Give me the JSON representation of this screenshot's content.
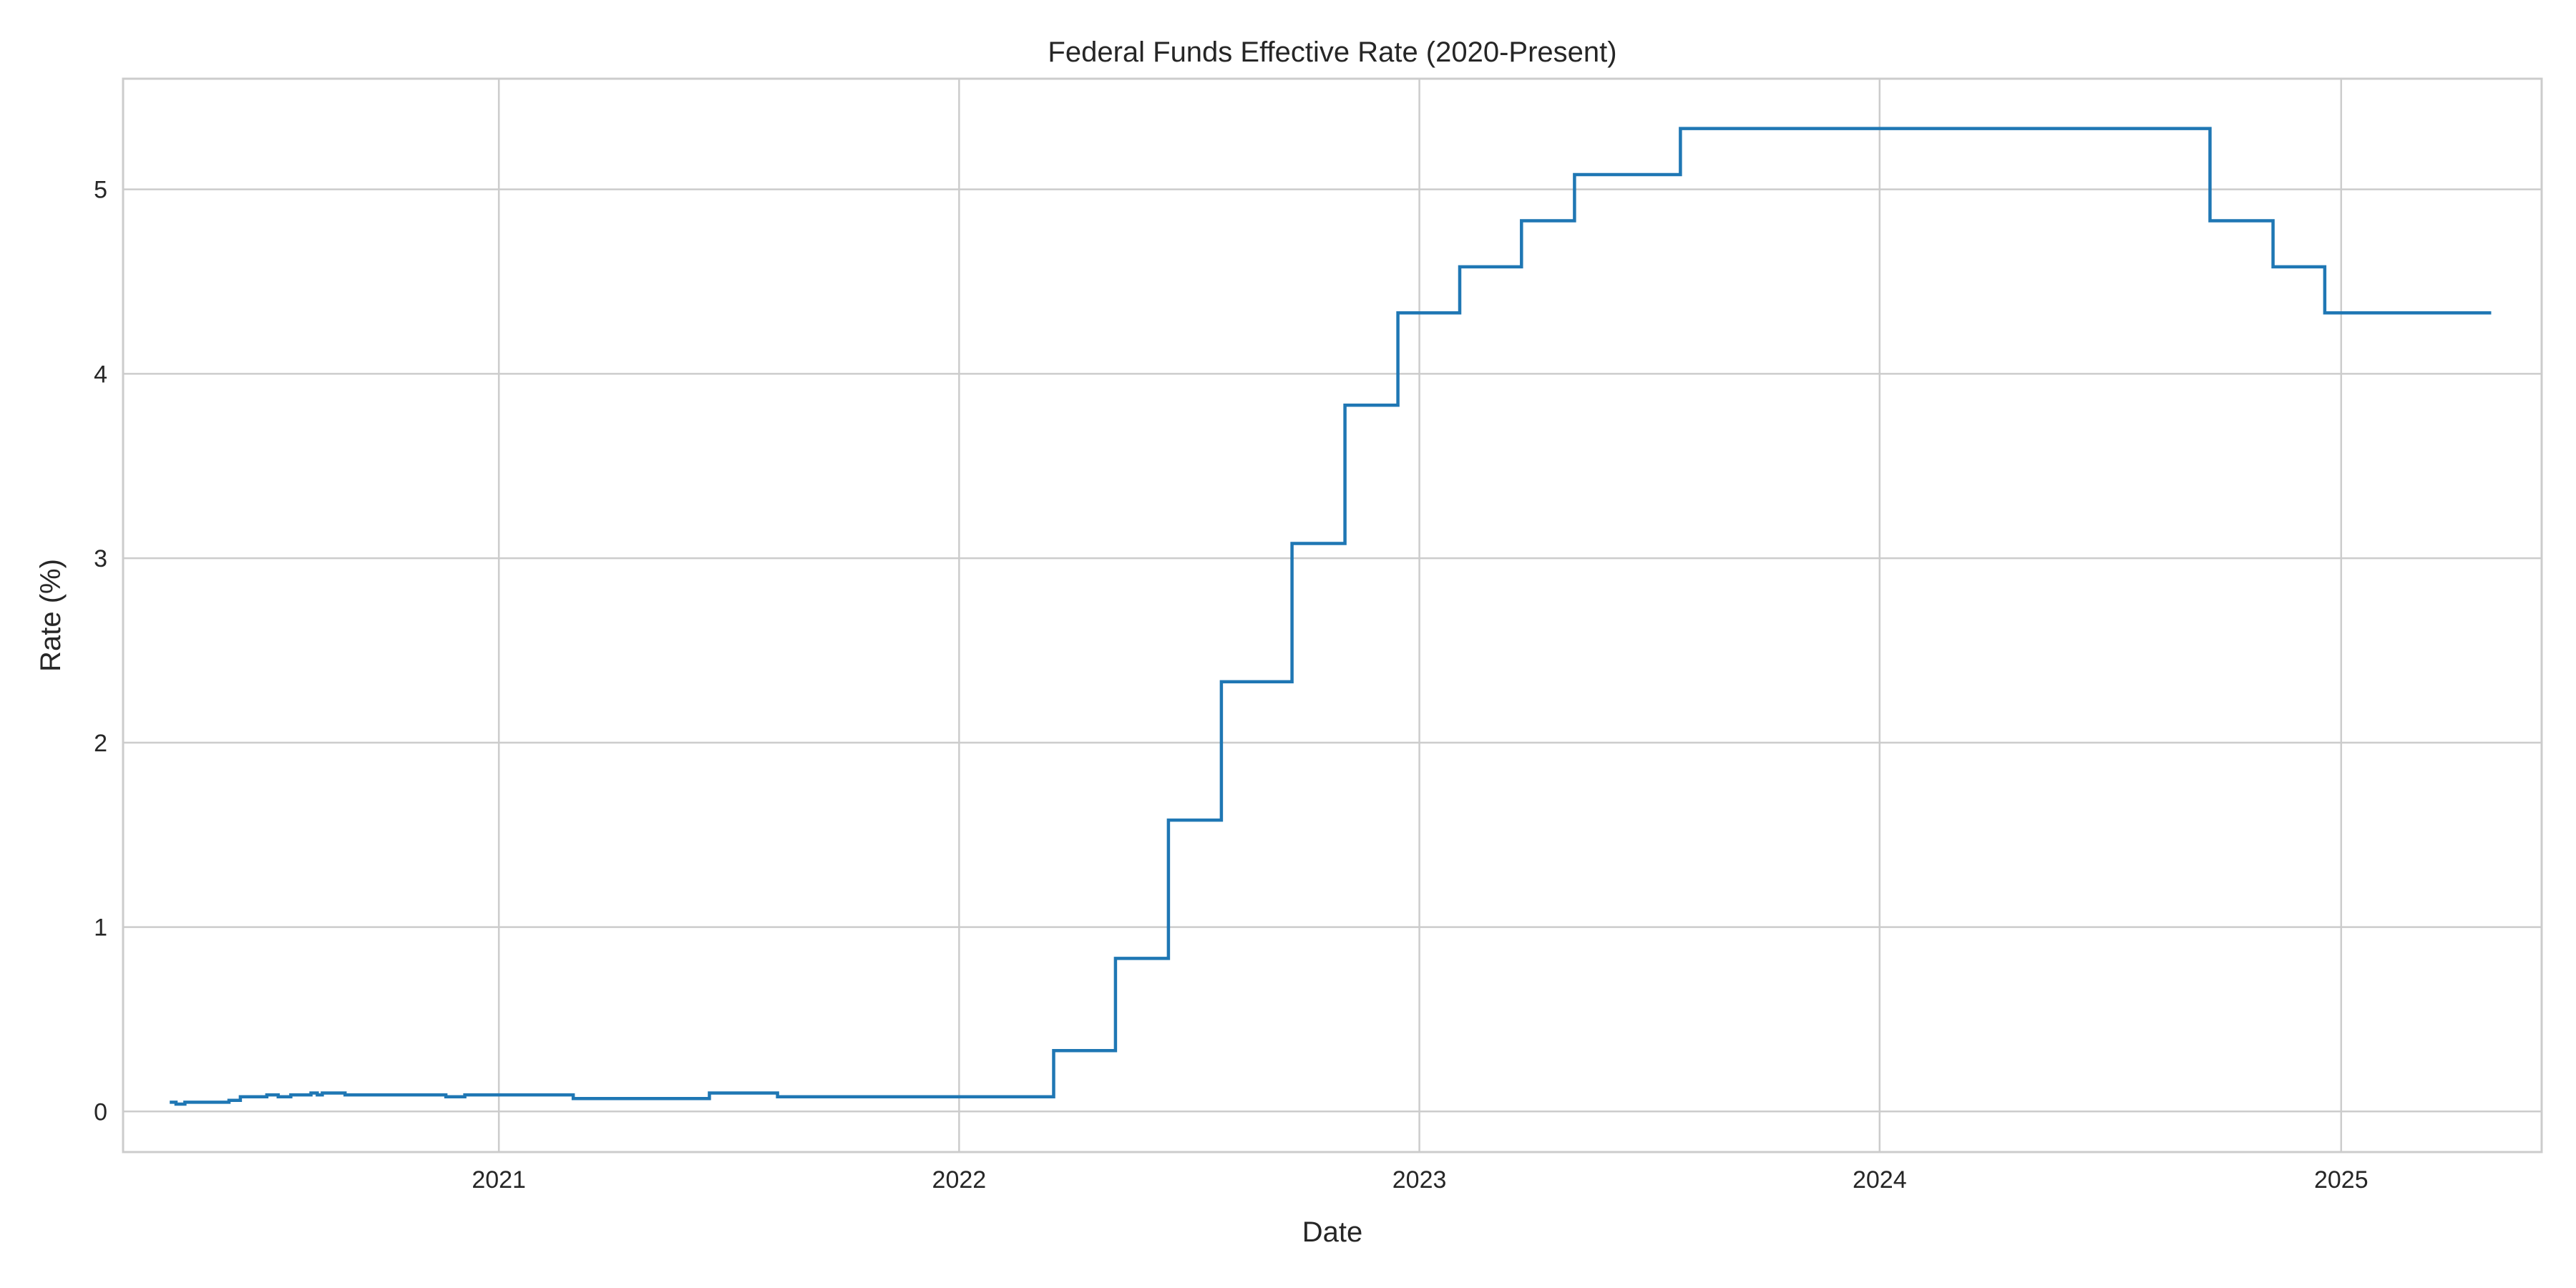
{
  "chart_data": {
    "type": "line",
    "title": "Federal Funds Effective Rate (2020-Present)",
    "xlabel": "Date",
    "ylabel": "Rate (%)",
    "grid": true,
    "legend": "none",
    "xlim": [
      "2020-03-09",
      "2025-06-09"
    ],
    "ylim": [
      -0.22,
      5.6
    ],
    "x_ticks": [
      {
        "date": "2021-01-01",
        "label": "2021"
      },
      {
        "date": "2022-01-01",
        "label": "2022"
      },
      {
        "date": "2023-01-01",
        "label": "2023"
      },
      {
        "date": "2024-01-01",
        "label": "2024"
      },
      {
        "date": "2025-01-01",
        "label": "2025"
      }
    ],
    "y_ticks": [
      0,
      1,
      2,
      3,
      4,
      5
    ],
    "colors": {
      "series": "#1f77b4",
      "grid": "#cccccc",
      "text": "#262626"
    },
    "series": [
      {
        "step": "post",
        "points": [
          [
            "2020-04-15",
            0.05
          ],
          [
            "2020-04-20",
            0.04
          ],
          [
            "2020-04-27",
            0.05
          ],
          [
            "2020-06-01",
            0.06
          ],
          [
            "2020-06-10",
            0.08
          ],
          [
            "2020-07-01",
            0.09
          ],
          [
            "2020-07-10",
            0.08
          ],
          [
            "2020-07-20",
            0.09
          ],
          [
            "2020-08-05",
            0.1
          ],
          [
            "2020-08-10",
            0.09
          ],
          [
            "2020-08-14",
            0.1
          ],
          [
            "2020-09-01",
            0.09
          ],
          [
            "2020-11-20",
            0.08
          ],
          [
            "2020-12-05",
            0.09
          ],
          [
            "2021-03-01",
            0.07
          ],
          [
            "2021-06-17",
            0.1
          ],
          [
            "2021-08-10",
            0.08
          ],
          [
            "2022-03-17",
            0.33
          ],
          [
            "2022-05-05",
            0.83
          ],
          [
            "2022-06-16",
            1.58
          ],
          [
            "2022-07-28",
            2.33
          ],
          [
            "2022-09-22",
            3.08
          ],
          [
            "2022-11-03",
            3.83
          ],
          [
            "2022-12-15",
            4.33
          ],
          [
            "2023-02-02",
            4.58
          ],
          [
            "2023-03-23",
            4.83
          ],
          [
            "2023-05-04",
            5.08
          ],
          [
            "2023-07-27",
            5.33
          ],
          [
            "2024-09-19",
            4.83
          ],
          [
            "2024-11-08",
            4.58
          ],
          [
            "2024-12-19",
            4.33
          ],
          [
            "2025-04-30",
            4.33
          ]
        ]
      }
    ]
  }
}
